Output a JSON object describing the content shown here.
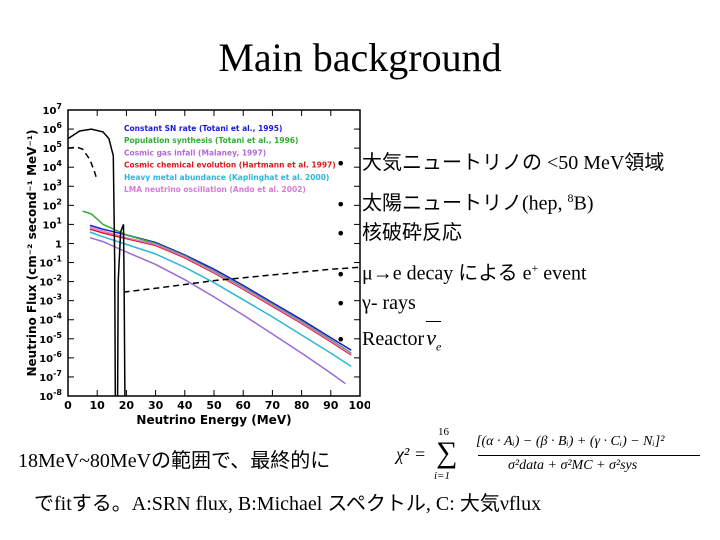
{
  "slide": {
    "title": "Main background",
    "bullets": [
      {
        "text": "大気ニュートリノの <50 MeV領域"
      },
      {
        "text": "太陽ニュートリノ(hep, ",
        "sup": "8",
        "tail": "B)"
      },
      {
        "text": "核破砕反応"
      },
      {
        "text": "μ→e decay による e",
        "sup": "+",
        "tail": " event"
      },
      {
        "text": "γ- rays"
      },
      {
        "text": "Reactor"
      }
    ],
    "bullet_glyph": "•",
    "reactor_symbol": {
      "base": "ν",
      "sub": "e"
    },
    "bottom_line1": "18MeV~80MeVの範囲で、最終的に",
    "bottom_line2": "でfitする。A:SRN flux, B:Michael スペクトル, C: 大気νflux",
    "formula": {
      "lhs": "χ² =",
      "sigma": "∑",
      "upper": "16",
      "lower": "i=1",
      "numerator": "[(α · Aᵢ) − (β · Bᵢ) + (γ · Cᵢ) − Nᵢ]²",
      "denominator": "σ²data + σ²MC + σ²sys"
    }
  },
  "chart_data": {
    "type": "line",
    "title": "",
    "xlabel": "Neutrino Energy (MeV)",
    "ylabel": "Neutrino Flux (cm⁻² second⁻¹ MeV⁻¹)",
    "xlim": [
      0,
      100
    ],
    "ylim_exponent": [
      -8,
      7
    ],
    "yscale": "log",
    "x_ticks": [
      "0",
      "10",
      "20",
      "30",
      "40",
      "50",
      "60",
      "70",
      "80",
      "90",
      "100"
    ],
    "y_ticks": [
      {
        "base": "10",
        "exp": "7"
      },
      {
        "base": "10",
        "exp": "6"
      },
      {
        "base": "10",
        "exp": "5"
      },
      {
        "base": "10",
        "exp": "4"
      },
      {
        "base": "10",
        "exp": "3"
      },
      {
        "base": "10",
        "exp": "2"
      },
      {
        "base": "10",
        "exp": "1"
      },
      {
        "base": "1",
        "exp": ""
      },
      {
        "base": "10",
        "exp": "-1"
      },
      {
        "base": "10",
        "exp": "-2"
      },
      {
        "base": "10",
        "exp": "-3"
      },
      {
        "base": "10",
        "exp": "-4"
      },
      {
        "base": "10",
        "exp": "-5"
      },
      {
        "base": "10",
        "exp": "-6"
      },
      {
        "base": "10",
        "exp": "-7"
      },
      {
        "base": "10",
        "exp": "-8"
      }
    ],
    "legend": [
      {
        "label": "Constant SN rate (Totani et al., 1995)",
        "color": "#1a1ad6"
      },
      {
        "label": "Population synthesis (Totani et al., 1996)",
        "color": "#2fae2f"
      },
      {
        "label": "Cosmic gas infall (Malaney, 1997)",
        "color": "#b36ad6"
      },
      {
        "label": "Cosmic chemical evolution (Hartmann et al. 1997)",
        "color": "#e01a1a"
      },
      {
        "label": "Heavy metal abundance (Kaplinghat et al. 2000)",
        "color": "#2ab7d8"
      },
      {
        "label": "LMA neutrino oscillation (Ando et al. 2002)",
        "color": "#d67ad6"
      }
    ],
    "legend_position": "top-right",
    "series": [
      {
        "color": "#e01a1a",
        "style": "solid",
        "points": [
          [
            7.5,
            0.75
          ],
          [
            12,
            0.55
          ],
          [
            20,
            0.25
          ],
          [
            30,
            -0.1
          ],
          [
            40,
            -0.75
          ],
          [
            50,
            -1.55
          ],
          [
            60,
            -2.4
          ],
          [
            70,
            -3.3
          ],
          [
            80,
            -4.2
          ],
          [
            90,
            -5.15
          ],
          [
            97,
            -5.85
          ]
        ]
      },
      {
        "color": "#1a1ad6",
        "style": "solid",
        "points": [
          [
            7.5,
            0.95
          ],
          [
            12,
            0.75
          ],
          [
            20,
            0.45
          ],
          [
            30,
            0.05
          ],
          [
            40,
            -0.6
          ],
          [
            50,
            -1.35
          ],
          [
            60,
            -2.2
          ],
          [
            70,
            -3.1
          ],
          [
            80,
            -4.0
          ],
          [
            90,
            -4.95
          ],
          [
            97,
            -5.6
          ]
        ]
      },
      {
        "color": "#2fae2f",
        "style": "solid",
        "points": [
          [
            5,
            1.7
          ],
          [
            8,
            1.55
          ],
          [
            12,
            1.0
          ],
          [
            20,
            0.45
          ],
          [
            30,
            0.0
          ],
          [
            40,
            -0.65
          ],
          [
            50,
            -1.45
          ],
          [
            60,
            -2.3
          ],
          [
            70,
            -3.2
          ],
          [
            80,
            -4.1
          ],
          [
            90,
            -5.05
          ],
          [
            97,
            -5.75
          ]
        ]
      },
      {
        "color": "#d67ad6",
        "style": "solid",
        "points": [
          [
            7.5,
            0.85
          ],
          [
            12,
            0.65
          ],
          [
            20,
            0.3
          ],
          [
            30,
            -0.05
          ],
          [
            40,
            -0.7
          ],
          [
            50,
            -1.5
          ],
          [
            60,
            -2.35
          ],
          [
            70,
            -3.25
          ],
          [
            80,
            -4.15
          ],
          [
            90,
            -5.1
          ],
          [
            97,
            -5.8
          ]
        ]
      },
      {
        "color": "#2ab7d8",
        "style": "solid",
        "points": [
          [
            7.5,
            0.6
          ],
          [
            12,
            0.35
          ],
          [
            20,
            -0.05
          ],
          [
            30,
            -0.55
          ],
          [
            40,
            -1.25
          ],
          [
            50,
            -2.05
          ],
          [
            60,
            -2.95
          ],
          [
            70,
            -3.85
          ],
          [
            80,
            -4.8
          ],
          [
            90,
            -5.75
          ],
          [
            97,
            -6.45
          ]
        ]
      },
      {
        "color": "#9a6ad6",
        "style": "solid",
        "points": [
          [
            7.5,
            0.3
          ],
          [
            12,
            0.1
          ],
          [
            20,
            -0.45
          ],
          [
            30,
            -1.1
          ],
          [
            40,
            -1.9
          ],
          [
            50,
            -2.8
          ],
          [
            60,
            -3.75
          ],
          [
            70,
            -4.75
          ],
          [
            80,
            -5.75
          ],
          [
            90,
            -6.8
          ],
          [
            95,
            -7.35
          ]
        ]
      },
      {
        "color": "#000000",
        "style": "dashed",
        "points": [
          [
            19,
            -2.55
          ],
          [
            30,
            -2.35
          ],
          [
            40,
            -2.15
          ],
          [
            50,
            -1.95
          ],
          [
            60,
            -1.8
          ],
          [
            70,
            -1.65
          ],
          [
            80,
            -1.5
          ],
          [
            90,
            -1.35
          ],
          [
            100,
            -1.25
          ]
        ]
      },
      {
        "color": "#000000",
        "style": "solid",
        "points": [
          [
            0,
            5.5
          ],
          [
            4,
            5.9
          ],
          [
            8,
            6.0
          ],
          [
            12,
            5.85
          ],
          [
            14,
            5.5
          ],
          [
            15.5,
            4.6
          ],
          [
            16,
            -1
          ],
          [
            16.2,
            -8
          ]
        ]
      },
      {
        "color": "#000000",
        "style": "solid",
        "points": [
          [
            17,
            -8
          ],
          [
            17.2,
            -2
          ],
          [
            18,
            0.6
          ],
          [
            19,
            1.0
          ],
          [
            19.2,
            -2
          ],
          [
            19.5,
            -8
          ]
        ]
      },
      {
        "color": "#000000",
        "style": "dashed",
        "points": [
          [
            0,
            5.0
          ],
          [
            3,
            5.05
          ],
          [
            5,
            4.95
          ],
          [
            7.5,
            4.4
          ],
          [
            9,
            3.8
          ],
          [
            10,
            3.3
          ]
        ]
      }
    ]
  }
}
